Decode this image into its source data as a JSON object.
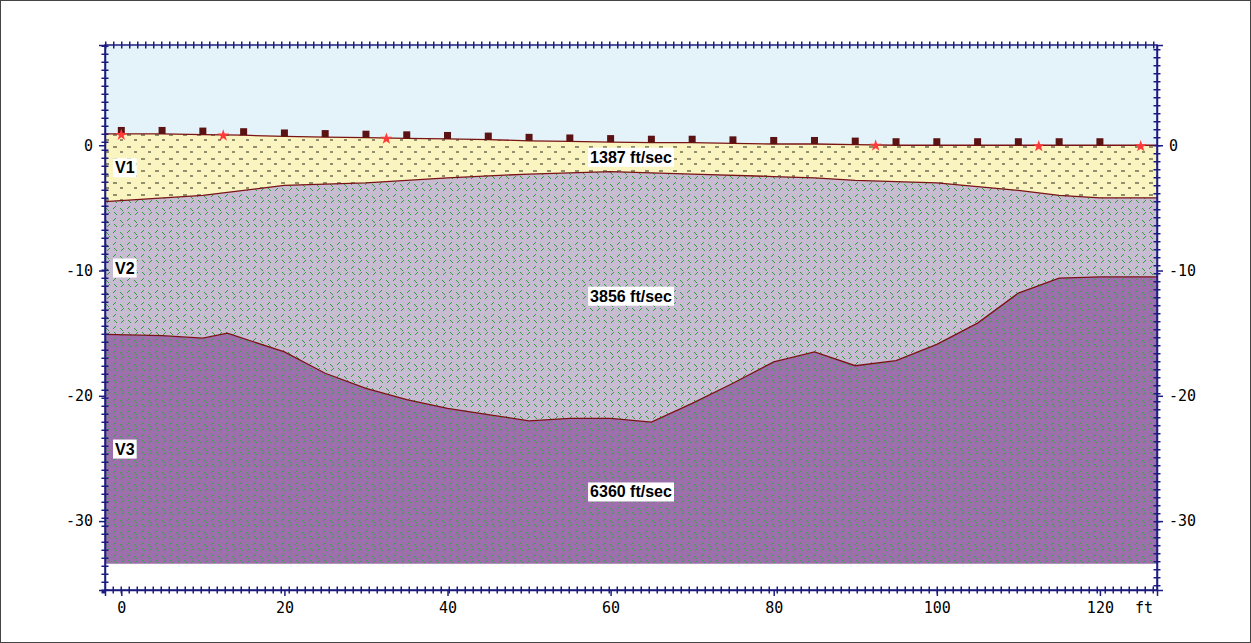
{
  "chart_data": {
    "type": "seismic_refraction_section",
    "xlim": [
      -2,
      127
    ],
    "ylim": [
      -35.5,
      8
    ],
    "xticks": [
      0,
      20,
      40,
      60,
      80,
      100,
      120
    ],
    "yticks": [
      -30,
      -20,
      -10,
      0
    ],
    "x_label": "ft",
    "interfaces": [
      {
        "x": [
          -2,
          0,
          5,
          10,
          15,
          20,
          25,
          30,
          35,
          40,
          45,
          50,
          55,
          60,
          65,
          70,
          75,
          80,
          85,
          90,
          95,
          100,
          105,
          110,
          115,
          120,
          127
        ],
        "values": [
          0.9,
          0.9,
          0.9,
          0.85,
          0.8,
          0.7,
          0.65,
          0.6,
          0.55,
          0.5,
          0.45,
          0.35,
          0.3,
          0.25,
          0.2,
          0.2,
          0.15,
          0.1,
          0.1,
          0.05,
          0,
          0,
          0,
          0,
          0,
          0,
          0
        ]
      },
      {
        "x": [
          -2,
          10,
          20,
          30,
          40,
          50,
          60,
          70,
          80,
          85,
          90,
          100,
          110,
          115,
          120,
          127
        ],
        "values": [
          -4.5,
          -4.0,
          -3.2,
          -3.0,
          -2.6,
          -2.3,
          -2.1,
          -2.3,
          -2.5,
          -2.6,
          -2.8,
          -3.0,
          -3.6,
          -4.0,
          -4.2,
          -4.2
        ]
      },
      {
        "x": [
          -2,
          5,
          10,
          13,
          20,
          25,
          30,
          35,
          40,
          45,
          50,
          55,
          60,
          65,
          70,
          75,
          80,
          85,
          90,
          95,
          100,
          105,
          110,
          115,
          120,
          127
        ],
        "values": [
          -15.1,
          -15.2,
          -15.4,
          -15.0,
          -16.5,
          -18.2,
          -19.4,
          -20.3,
          -21.0,
          -21.5,
          -22.0,
          -21.8,
          -21.8,
          -22.1,
          -20.6,
          -19.0,
          -17.3,
          -16.5,
          -17.6,
          -17.2,
          -15.9,
          -14.2,
          -11.8,
          -10.6,
          -10.5,
          -10.5
        ]
      }
    ],
    "model_bottom": -33.4,
    "layers": [
      {
        "name": "V1",
        "velocity_label": "1387 ft/sec",
        "color": "#faf4c0"
      },
      {
        "name": "V2",
        "velocity_label": "3856 ft/sec",
        "color": "#c8bcd2"
      },
      {
        "name": "V3",
        "velocity_label": "6360 ft/sec",
        "color": "#9c70aa"
      }
    ],
    "geophones": {
      "x": [
        0,
        5,
        10,
        15,
        20,
        25,
        30,
        35,
        40,
        45,
        50,
        55,
        60,
        65,
        70,
        75,
        80,
        85,
        90,
        95,
        100,
        105,
        110,
        115,
        120
      ],
      "values": [
        0.9,
        0.9,
        0.85,
        0.8,
        0.7,
        0.65,
        0.6,
        0.55,
        0.5,
        0.45,
        0.35,
        0.3,
        0.25,
        0.2,
        0.2,
        0.15,
        0.1,
        0.1,
        0.05,
        0,
        0,
        0,
        0,
        0,
        0
      ]
    },
    "shots": {
      "x": [
        0,
        12.5,
        32.5,
        92.5,
        112.5,
        125
      ],
      "values": [
        0.9,
        0.85,
        0.6,
        0.05,
        0,
        0
      ]
    }
  }
}
